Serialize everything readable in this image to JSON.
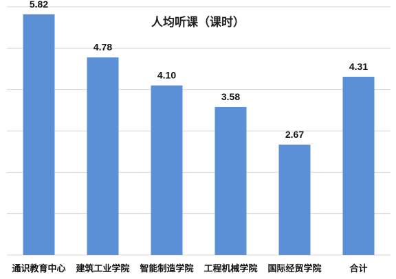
{
  "chart_data": {
    "type": "bar",
    "title": "人均听课（课时）",
    "categories": [
      "通识教育中心",
      "建筑工业学院",
      "智能制造学院",
      "工程机械学院",
      "国际经贸学院",
      "合计"
    ],
    "values": [
      5.82,
      4.78,
      4.1,
      3.58,
      2.67,
      4.31
    ],
    "value_labels": [
      "5.82",
      "4.78",
      "4.10",
      "3.58",
      "2.67",
      "4.31"
    ],
    "ylim": [
      0,
      6.0
    ],
    "grid": true,
    "legend": "none",
    "bar_color": "#5b8fd6",
    "grid_color": "#d9d9d9"
  }
}
